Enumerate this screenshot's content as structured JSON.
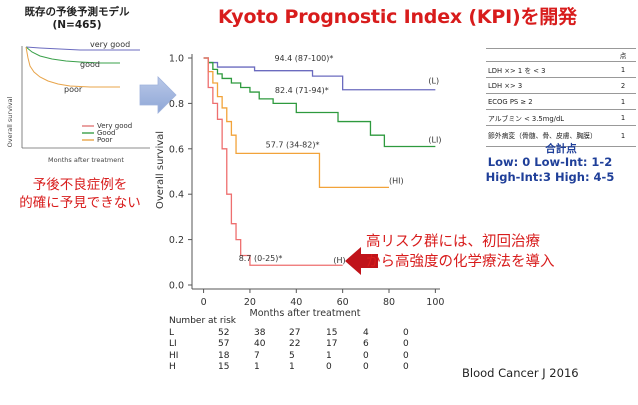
{
  "title": "Kyoto Prognostic Index (KPI)を開発",
  "old_model": {
    "title_line1": "既存の予後予測モデル",
    "title_line2": "(N=465)",
    "ylabel": "Overall survival",
    "xlabel": "Months after treatment",
    "curve_labels": [
      "very good",
      "good",
      "poor"
    ],
    "legend": [
      "Very  good",
      "Good",
      "Poor"
    ],
    "colors": {
      "very_good": "#e07a7a",
      "good": "#3aa04a",
      "poor": "#e8a44a"
    },
    "caption_line1": "予後不良症例を",
    "caption_line2": "的確に予見できない"
  },
  "callout": {
    "line1": "高リスク群には、初回治療",
    "line2": "から高強度の化学療法を導入"
  },
  "score_table": {
    "header": [
      "",
      "点"
    ],
    "rows": [
      {
        "factor": "LDH  ×> 1 を < 3",
        "points": "1"
      },
      {
        "factor": "LDH  ×> 3",
        "points": "2"
      },
      {
        "factor": "ECOG PS ≥ 2",
        "points": "1"
      },
      {
        "factor": "アルブミン < 3.5mg/dL",
        "points": "1"
      },
      {
        "factor": "節外病変（骨髄、骨、皮膚、胸膜）",
        "points": "1"
      }
    ],
    "total_label": "合計点",
    "groups_line1": "Low: 0  Low-Int: 1-2",
    "groups_line2": "High-Int:3  High: 4-5"
  },
  "citation": "Blood Cancer J 2016",
  "risk_table": {
    "header": "Number at risk",
    "times": [
      "0",
      "20",
      "40",
      "60",
      "80",
      "100"
    ],
    "rows": [
      {
        "label": "L",
        "values": [
          "52",
          "38",
          "27",
          "15",
          "4",
          "0"
        ]
      },
      {
        "label": "LI",
        "values": [
          "57",
          "40",
          "22",
          "17",
          "6",
          "0"
        ]
      },
      {
        "label": "HI",
        "values": [
          "18",
          "7",
          "5",
          "1",
          "0",
          "0"
        ]
      },
      {
        "label": "H",
        "values": [
          "15",
          "1",
          "1",
          "0",
          "0",
          "0"
        ]
      }
    ]
  },
  "chart_data": {
    "type": "line",
    "xlabel": "Months after treatment",
    "ylabel": "Overall survival",
    "xlim": [
      -5,
      102
    ],
    "ylim": [
      0,
      1.0
    ],
    "x_ticks": [
      "0",
      "20",
      "40",
      "60",
      "80",
      "100"
    ],
    "y_ticks": [
      "0.0",
      "0.2",
      "0.4",
      "0.6",
      "0.8",
      "1.0"
    ],
    "series": [
      {
        "name": "L",
        "color": "#6b6bbf",
        "annotation": "94.4 (87-100)*",
        "points": [
          [
            0,
            1.0
          ],
          [
            2,
            0.98
          ],
          [
            4,
            0.98
          ],
          [
            6,
            0.96
          ],
          [
            20,
            0.96
          ],
          [
            22,
            0.944
          ],
          [
            45,
            0.944
          ],
          [
            47,
            0.92
          ],
          [
            58,
            0.92
          ],
          [
            60,
            0.86
          ],
          [
            100,
            0.86
          ]
        ]
      },
      {
        "name": "LI",
        "color": "#2e9a3e",
        "annotation": "82.4 (71-94)*",
        "points": [
          [
            0,
            1.0
          ],
          [
            2,
            0.98
          ],
          [
            4,
            0.95
          ],
          [
            6,
            0.93
          ],
          [
            8,
            0.91
          ],
          [
            12,
            0.89
          ],
          [
            16,
            0.87
          ],
          [
            20,
            0.85
          ],
          [
            24,
            0.82
          ],
          [
            30,
            0.8
          ],
          [
            38,
            0.8
          ],
          [
            40,
            0.76
          ],
          [
            56,
            0.76
          ],
          [
            58,
            0.72
          ],
          [
            70,
            0.72
          ],
          [
            72,
            0.66
          ],
          [
            76,
            0.66
          ],
          [
            78,
            0.61
          ],
          [
            100,
            0.61
          ]
        ]
      },
      {
        "name": "HI",
        "color": "#f2a33a",
        "annotation": "57.7 (34-82)*",
        "points": [
          [
            0,
            1.0
          ],
          [
            2,
            0.94
          ],
          [
            4,
            0.89
          ],
          [
            6,
            0.83
          ],
          [
            8,
            0.78
          ],
          [
            10,
            0.72
          ],
          [
            12,
            0.66
          ],
          [
            14,
            0.58
          ],
          [
            48,
            0.58
          ],
          [
            50,
            0.43
          ],
          [
            80,
            0.43
          ]
        ]
      },
      {
        "name": "H",
        "color": "#ee6f6f",
        "annotation": "8.7 (0-25)*",
        "points": [
          [
            0,
            1.0
          ],
          [
            2,
            0.87
          ],
          [
            4,
            0.8
          ],
          [
            6,
            0.73
          ],
          [
            8,
            0.6
          ],
          [
            10,
            0.4
          ],
          [
            12,
            0.27
          ],
          [
            14,
            0.2
          ],
          [
            16,
            0.13
          ],
          [
            20,
            0.087
          ],
          [
            60,
            0.087
          ]
        ]
      }
    ]
  }
}
